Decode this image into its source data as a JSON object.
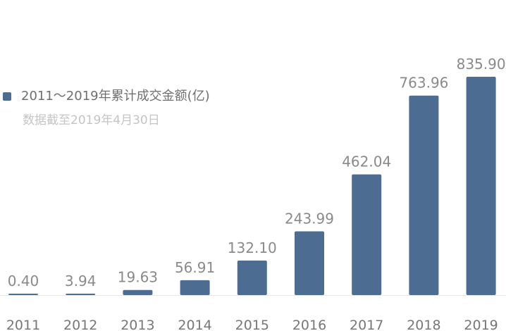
{
  "chart_data": {
    "type": "bar",
    "categories": [
      "2011",
      "2012",
      "2013",
      "2014",
      "2015",
      "2016",
      "2017",
      "2018",
      "2019"
    ],
    "series": [
      {
        "name": "2011～2019年累计成交金额(亿)",
        "values": [
          0.4,
          3.94,
          19.63,
          56.91,
          132.1,
          243.99,
          462.04,
          763.96,
          835.9
        ]
      }
    ],
    "data_labels": [
      "0.40",
      "3.94",
      "19.63",
      "56.91",
      "132.10",
      "243.99",
      "462.04",
      "763.96",
      "835.90"
    ],
    "annotation": "数据截至2019年4月30日",
    "ylim": [
      0,
      835.9
    ],
    "grid": false,
    "legend_placement": "top-left",
    "colors": {
      "bar": "#4c6c91",
      "label_text": "#8a8a8a",
      "axis_text": "#777777",
      "baseline": "#e8e8e8"
    }
  }
}
